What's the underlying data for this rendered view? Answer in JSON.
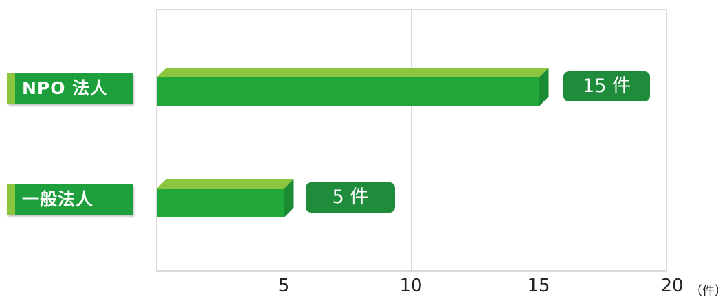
{
  "chart_data": {
    "type": "bar",
    "orientation": "horizontal",
    "categories": [
      "NPO 法人",
      "一般法人"
    ],
    "values": [
      15,
      5
    ],
    "value_labels": [
      "15 件",
      "5 件"
    ],
    "x_ticks": [
      "5",
      "10",
      "15",
      "20"
    ],
    "xlim": [
      0,
      20
    ],
    "unit": "（件）",
    "grid": true,
    "colors": {
      "bar": "#22a83a",
      "bar_top": "#8cc63f",
      "label_bg": "#1f8c3b",
      "category_bg": "#1d9f3c"
    }
  }
}
